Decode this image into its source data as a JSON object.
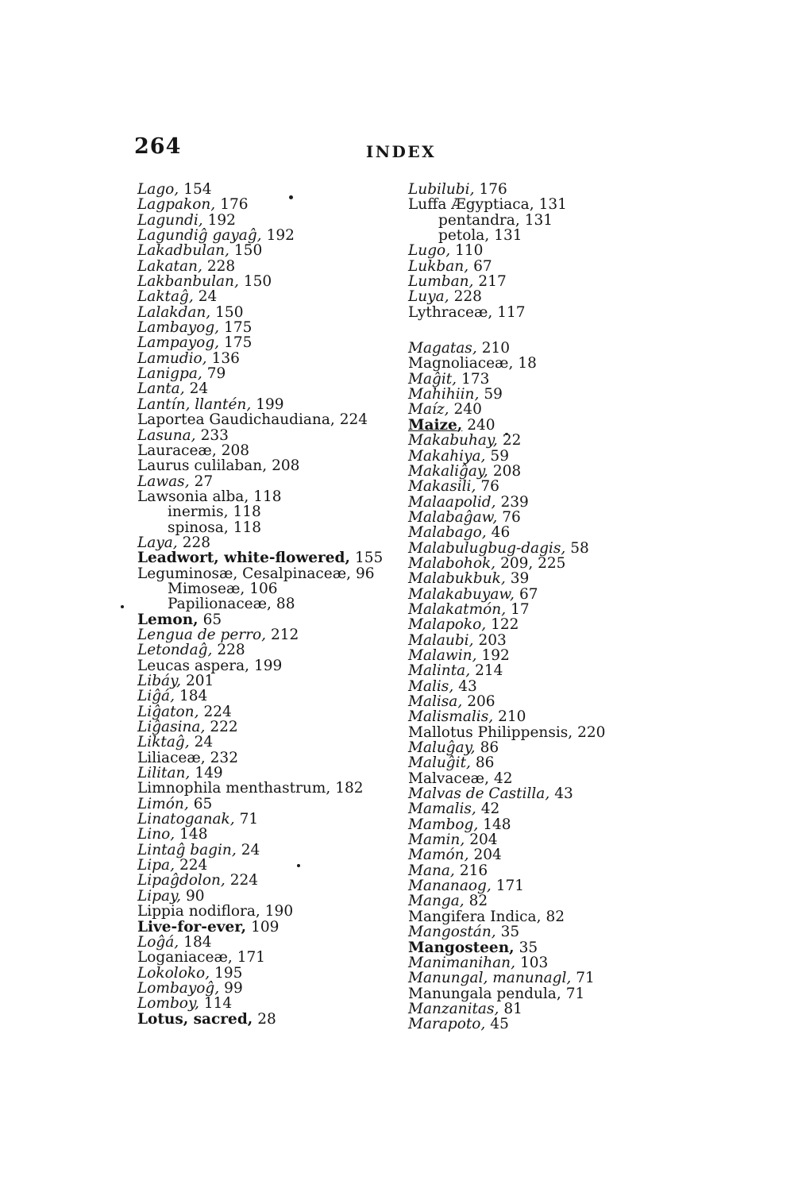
{
  "header": {
    "page_number": "264",
    "title": "INDEX"
  },
  "columns": {
    "left": [
      {
        "term": "Lago",
        "refs": "154",
        "style": "italic",
        "indent": 0
      },
      {
        "term": "Lagpakon",
        "refs": "176",
        "style": "italic",
        "indent": 0
      },
      {
        "term": "Lagundi",
        "refs": "192",
        "style": "italic",
        "indent": 0
      },
      {
        "term": "Lagundiĝ gayaĝ",
        "refs": "192",
        "style": "italic",
        "indent": 0
      },
      {
        "term": "Lakadbulan",
        "refs": "150",
        "style": "italic",
        "indent": 0
      },
      {
        "term": "Lakatan",
        "refs": "228",
        "style": "italic",
        "indent": 0
      },
      {
        "term": "Lakbanbulan",
        "refs": "150",
        "style": "italic",
        "indent": 0
      },
      {
        "term": "Laktaĝ",
        "refs": "24",
        "style": "italic",
        "indent": 0
      },
      {
        "term": "Lalakdan",
        "refs": "150",
        "style": "italic",
        "indent": 0
      },
      {
        "term": "Lambayog",
        "refs": "175",
        "style": "italic",
        "indent": 0
      },
      {
        "term": "Lampayog",
        "refs": "175",
        "style": "italic",
        "indent": 0
      },
      {
        "term": "Lamudio",
        "refs": "136",
        "style": "italic",
        "indent": 0
      },
      {
        "term": "Lanigpa",
        "refs": "79",
        "style": "italic",
        "indent": 0
      },
      {
        "term": "Lanta",
        "refs": "24",
        "style": "italic",
        "indent": 0
      },
      {
        "term": "Lantín, llantén",
        "refs": "199",
        "style": "italic",
        "indent": 0
      },
      {
        "term": "Laportea Gaudichaudiana",
        "refs": "224",
        "style": "roman",
        "indent": 0
      },
      {
        "term": "Lasuna",
        "refs": "233",
        "style": "italic",
        "indent": 0
      },
      {
        "term": "Lauraceæ",
        "refs": "208",
        "style": "roman",
        "indent": 0
      },
      {
        "term": "Laurus culilaban",
        "refs": "208",
        "style": "roman",
        "indent": 0
      },
      {
        "term": "Lawas",
        "refs": "27",
        "style": "italic",
        "indent": 0
      },
      {
        "term": "Lawsonia alba",
        "refs": "118",
        "style": "roman",
        "indent": 0
      },
      {
        "term": "inermis",
        "refs": "118",
        "style": "roman",
        "indent": 1
      },
      {
        "term": "spinosa",
        "refs": "118",
        "style": "roman",
        "indent": 1
      },
      {
        "term": "Laya",
        "refs": "228",
        "style": "italic",
        "indent": 0
      },
      {
        "term": "Leadwort, white-flowered",
        "refs": "155",
        "style": "bold",
        "indent": 0
      },
      {
        "term": "Leguminosæ, Cesalpinaceæ",
        "refs": "96",
        "style": "roman",
        "indent": 0
      },
      {
        "term": "Mimoseæ",
        "refs": "106",
        "style": "roman",
        "indent": 1
      },
      {
        "term": "Papilionaceæ",
        "refs": "88",
        "style": "roman",
        "indent": 1
      },
      {
        "term": "Lemon",
        "refs": "65",
        "style": "bold",
        "indent": 0
      },
      {
        "term": "Lengua de perro",
        "refs": "212",
        "style": "italic",
        "indent": 0
      },
      {
        "term": "Letondaĝ",
        "refs": "228",
        "style": "italic",
        "indent": 0
      },
      {
        "term": "Leucas aspera",
        "refs": "199",
        "style": "roman",
        "indent": 0
      },
      {
        "term": "Libáy",
        "refs": "201",
        "style": "italic",
        "indent": 0
      },
      {
        "term": "Liĝá",
        "refs": "184",
        "style": "italic",
        "indent": 0
      },
      {
        "term": "Liĝaton",
        "refs": "224",
        "style": "italic",
        "indent": 0
      },
      {
        "term": "Liĝasina",
        "refs": "222",
        "style": "italic",
        "indent": 0
      },
      {
        "term": "Liktaĝ",
        "refs": "24",
        "style": "italic",
        "indent": 0
      },
      {
        "term": "Liliaceæ",
        "refs": "232",
        "style": "roman",
        "indent": 0
      },
      {
        "term": "Lilitan",
        "refs": "149",
        "style": "italic",
        "indent": 0
      },
      {
        "term": "Limnophila menthastrum",
        "refs": "182",
        "style": "roman",
        "indent": 0
      },
      {
        "term": "Limón",
        "refs": "65",
        "style": "italic",
        "indent": 0
      },
      {
        "term": "Linatoganak",
        "refs": "71",
        "style": "italic",
        "indent": 0
      },
      {
        "term": "Lino",
        "refs": "148",
        "style": "italic",
        "indent": 0
      },
      {
        "term": "Lintaĝ bagin",
        "refs": "24",
        "style": "italic",
        "indent": 0
      },
      {
        "term": "Lipa",
        "refs": "224",
        "style": "italic",
        "indent": 0
      },
      {
        "term": "Lipaĝdolon",
        "refs": "224",
        "style": "italic",
        "indent": 0
      },
      {
        "term": "Lipay",
        "refs": "90",
        "style": "italic",
        "indent": 0
      },
      {
        "term": "Lippia nodiflora",
        "refs": "190",
        "style": "roman",
        "indent": 0
      },
      {
        "term": "Live-for-ever",
        "refs": "109",
        "style": "bold",
        "indent": 0
      },
      {
        "term": "Loĝá",
        "refs": "184",
        "style": "italic",
        "indent": 0
      },
      {
        "term": "Loganiaceæ",
        "refs": "171",
        "style": "roman",
        "indent": 0
      },
      {
        "term": "Lokoloko",
        "refs": "195",
        "style": "italic",
        "indent": 0
      },
      {
        "term": "Lombayoĝ",
        "refs": "99",
        "style": "italic",
        "indent": 0
      },
      {
        "term": "Lomboy",
        "refs": "114",
        "style": "italic",
        "indent": 0
      },
      {
        "term": "Lotus, sacred",
        "refs": "28",
        "style": "bold",
        "indent": 0
      }
    ],
    "right": [
      {
        "term": "Lubilubi",
        "refs": "176",
        "style": "italic",
        "indent": 0
      },
      {
        "term": "Luffa Ægyptiaca",
        "refs": "131",
        "style": "roman",
        "indent": 0
      },
      {
        "term": "pentandra",
        "refs": "131",
        "style": "roman",
        "indent": 1
      },
      {
        "term": "petola",
        "refs": "131",
        "style": "roman",
        "indent": 1
      },
      {
        "term": "Lugo",
        "refs": "110",
        "style": "italic",
        "indent": 0
      },
      {
        "term": "Lukban",
        "refs": "67",
        "style": "italic",
        "indent": 0
      },
      {
        "term": "Lumban",
        "refs": "217",
        "style": "italic",
        "indent": 0
      },
      {
        "term": "Luya",
        "refs": "228",
        "style": "italic",
        "indent": 0
      },
      {
        "term": "Lythraceæ",
        "refs": "117",
        "style": "roman",
        "indent": 0
      },
      {
        "term": "",
        "refs": "",
        "style": "blank",
        "indent": 0
      },
      {
        "term": "Magatas",
        "refs": "210",
        "style": "italic",
        "indent": 0
      },
      {
        "term": "Magnoliaceæ",
        "refs": "18",
        "style": "roman",
        "indent": 0
      },
      {
        "term": "Maĝit",
        "refs": "173",
        "style": "italic",
        "indent": 0
      },
      {
        "term": "Mahihiin",
        "refs": "59",
        "style": "italic",
        "indent": 0
      },
      {
        "term": "Maíz",
        "refs": "240",
        "style": "italic",
        "indent": 0
      },
      {
        "term": "Maize",
        "refs": "240",
        "style": "bold-underline",
        "indent": 0
      },
      {
        "term": "Makabuhay",
        "refs": "22",
        "style": "italic",
        "indent": 0
      },
      {
        "term": "Makahiya",
        "refs": "59",
        "style": "italic",
        "indent": 0
      },
      {
        "term": "Makaliĝay",
        "refs": "208",
        "style": "italic",
        "indent": 0
      },
      {
        "term": "Makasili",
        "refs": "76",
        "style": "italic",
        "indent": 0
      },
      {
        "term": "Malaapolid",
        "refs": "239",
        "style": "italic",
        "indent": 0
      },
      {
        "term": "Malabaĝaw",
        "refs": "76",
        "style": "italic",
        "indent": 0
      },
      {
        "term": "Malabago",
        "refs": "46",
        "style": "italic",
        "indent": 0
      },
      {
        "term": "Malabulugbug-dagis",
        "refs": "58",
        "style": "italic",
        "indent": 0
      },
      {
        "term": "Malabohok",
        "refs": "209, 225",
        "style": "italic",
        "indent": 0
      },
      {
        "term": "Malabukbuk",
        "refs": "39",
        "style": "italic",
        "indent": 0
      },
      {
        "term": "Malakabuyaw",
        "refs": "67",
        "style": "italic",
        "indent": 0
      },
      {
        "term": "Malakatmón",
        "refs": "17",
        "style": "italic",
        "indent": 0
      },
      {
        "term": "Malapoko",
        "refs": "122",
        "style": "italic",
        "indent": 0
      },
      {
        "term": "Malaubi",
        "refs": "203",
        "style": "italic",
        "indent": 0
      },
      {
        "term": "Malawin",
        "refs": "192",
        "style": "italic",
        "indent": 0
      },
      {
        "term": "Malinta",
        "refs": "214",
        "style": "italic",
        "indent": 0
      },
      {
        "term": "Malis",
        "refs": "43",
        "style": "italic",
        "indent": 0
      },
      {
        "term": "Malisa",
        "refs": "206",
        "style": "italic",
        "indent": 0
      },
      {
        "term": "Malismalis",
        "refs": "210",
        "style": "italic",
        "indent": 0
      },
      {
        "term": "Mallotus Philippensis",
        "refs": "220",
        "style": "roman",
        "indent": 0
      },
      {
        "term": "Maluĝay",
        "refs": "86",
        "style": "italic",
        "indent": 0
      },
      {
        "term": "Maluĝit",
        "refs": "86",
        "style": "italic",
        "indent": 0
      },
      {
        "term": "Malvaceæ",
        "refs": "42",
        "style": "roman",
        "indent": 0
      },
      {
        "term": "Malvas de Castilla",
        "refs": "43",
        "style": "italic",
        "indent": 0
      },
      {
        "term": "Mamalis",
        "refs": "42",
        "style": "italic",
        "indent": 0
      },
      {
        "term": "Mambog",
        "refs": "148",
        "style": "italic",
        "indent": 0
      },
      {
        "term": "Mamin",
        "refs": "204",
        "style": "italic",
        "indent": 0
      },
      {
        "term": "Mamón",
        "refs": "204",
        "style": "italic",
        "indent": 0
      },
      {
        "term": "Mana",
        "refs": "216",
        "style": "italic",
        "indent": 0
      },
      {
        "term": "Mananaog",
        "refs": "171",
        "style": "italic",
        "indent": 0
      },
      {
        "term": "Manga",
        "refs": "82",
        "style": "italic",
        "indent": 0
      },
      {
        "term": "Mangifera Indica",
        "refs": "82",
        "style": "roman",
        "indent": 0
      },
      {
        "term": "Mangostán",
        "refs": "35",
        "style": "italic",
        "indent": 0
      },
      {
        "term": "Mangosteen",
        "refs": "35",
        "style": "bold",
        "indent": 0
      },
      {
        "term": "Manimanihan",
        "refs": "103",
        "style": "italic",
        "indent": 0
      },
      {
        "term": "Manungal, manunagl",
        "refs": "71",
        "style": "italic",
        "indent": 0
      },
      {
        "term": "Manungala pendula",
        "refs": "71",
        "style": "roman",
        "indent": 0
      },
      {
        "term": "Manzanitas",
        "refs": "81",
        "style": "italic",
        "indent": 0
      },
      {
        "term": "Marapoto",
        "refs": "45",
        "style": "italic",
        "indent": 0
      }
    ]
  }
}
